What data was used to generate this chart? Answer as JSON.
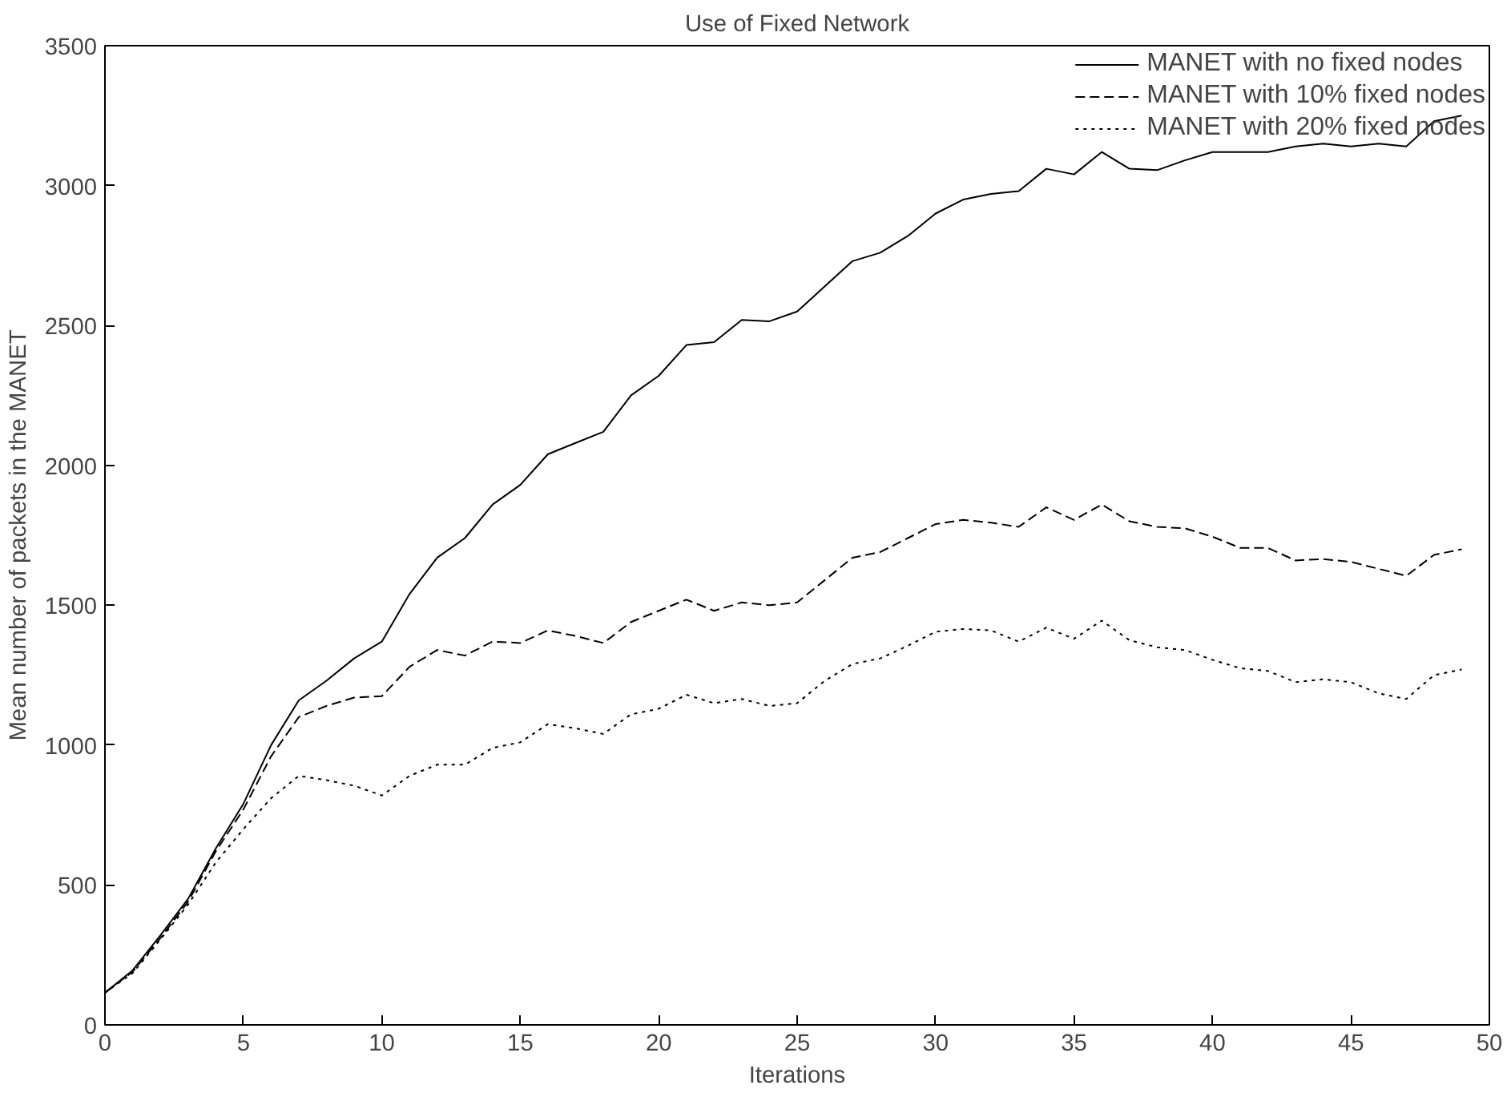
{
  "chart_data": {
    "type": "line",
    "title": "Use of Fixed Network",
    "xlabel": "Iterations",
    "ylabel": "Mean number of packets in the MANET",
    "x": [
      0,
      1,
      2,
      3,
      4,
      5,
      6,
      7,
      8,
      9,
      10,
      11,
      12,
      13,
      14,
      15,
      16,
      17,
      18,
      19,
      20,
      21,
      22,
      23,
      24,
      25,
      26,
      27,
      28,
      29,
      30,
      31,
      32,
      33,
      34,
      35,
      36,
      37,
      38,
      39,
      40,
      41,
      42,
      43,
      44,
      45,
      46,
      47,
      48,
      49
    ],
    "series": [
      {
        "name": "MANET with no fixed nodes",
        "color": "#000000",
        "line_style": "solid",
        "values": [
          115,
          195,
          320,
          450,
          630,
          790,
          1000,
          1160,
          1230,
          1310,
          1370,
          1540,
          1670,
          1740,
          1860,
          1930,
          2040,
          2080,
          2120,
          2250,
          2320,
          2430,
          2440,
          2520,
          2515,
          2550,
          2640,
          2730,
          2760,
          2820,
          2900,
          2950,
          2970,
          2980,
          3060,
          3040,
          3120,
          3060,
          3055,
          3090,
          3120,
          3120,
          3120,
          3140,
          3150,
          3140,
          3150,
          3140,
          3230,
          3250
        ]
      },
      {
        "name": "MANET with 10% fixed nodes",
        "color": "#000000",
        "line_style": "dashed",
        "values": [
          115,
          190,
          310,
          440,
          620,
          770,
          960,
          1100,
          1140,
          1170,
          1175,
          1280,
          1340,
          1320,
          1370,
          1365,
          1410,
          1390,
          1365,
          1440,
          1480,
          1520,
          1480,
          1510,
          1500,
          1510,
          1590,
          1670,
          1690,
          1740,
          1790,
          1805,
          1795,
          1780,
          1850,
          1805,
          1860,
          1800,
          1780,
          1775,
          1745,
          1705,
          1705,
          1660,
          1665,
          1655,
          1630,
          1605,
          1680,
          1700
        ]
      },
      {
        "name": "MANET with 20% fixed nodes",
        "color": "#000000",
        "line_style": "dotted",
        "values": [
          115,
          185,
          305,
          430,
          580,
          700,
          810,
          890,
          875,
          855,
          820,
          890,
          930,
          930,
          990,
          1010,
          1075,
          1060,
          1040,
          1110,
          1130,
          1180,
          1150,
          1165,
          1140,
          1150,
          1230,
          1290,
          1310,
          1355,
          1405,
          1415,
          1410,
          1370,
          1420,
          1380,
          1445,
          1375,
          1350,
          1340,
          1305,
          1275,
          1265,
          1225,
          1235,
          1225,
          1185,
          1165,
          1250,
          1270
        ]
      }
    ],
    "xlim": [
      0,
      50
    ],
    "xticks": [
      0,
      5,
      10,
      15,
      20,
      25,
      30,
      35,
      40,
      45,
      50
    ],
    "ylim": [
      0,
      3500
    ],
    "yticks": [
      0,
      500,
      1000,
      1500,
      2000,
      2500,
      3000,
      3500
    ],
    "grid": false,
    "legend": "top right",
    "marker": "none"
  }
}
